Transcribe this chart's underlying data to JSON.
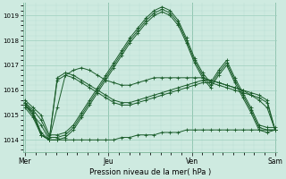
{
  "xlabel": "Pression niveau de la mer( hPa )",
  "bg_color": "#ceeae0",
  "grid_color_major": "#9ecfbe",
  "grid_color_minor": "#b8ddd2",
  "line_color": "#1a5c2a",
  "day_labels": [
    "Mer",
    "Jeu",
    "Ven",
    "Sam"
  ],
  "ylim": [
    1013.5,
    1019.5
  ],
  "yticks": [
    1014,
    1015,
    1016,
    1017,
    1018,
    1019
  ],
  "xlim_days": 6.0,
  "series": [
    [
      1015.5,
      1015.2,
      1014.8,
      1014.1,
      1014.1,
      1014.2,
      1014.5,
      1015.0,
      1015.5,
      1016.0,
      1016.5,
      1017.0,
      1017.5,
      1018.0,
      1018.4,
      1018.8,
      1019.1,
      1019.25,
      1019.1,
      1018.7,
      1018.0,
      1017.2,
      1016.6,
      1016.2,
      1016.7,
      1017.1,
      1016.4,
      1015.8,
      1015.2,
      1014.5,
      1014.4,
      1014.4
    ],
    [
      1015.4,
      1015.0,
      1014.6,
      1014.0,
      1014.0,
      1014.1,
      1014.4,
      1014.9,
      1015.4,
      1015.9,
      1016.4,
      1016.9,
      1017.4,
      1017.9,
      1018.3,
      1018.7,
      1019.0,
      1019.15,
      1019.0,
      1018.6,
      1017.9,
      1017.1,
      1016.5,
      1016.1,
      1016.6,
      1017.0,
      1016.3,
      1015.7,
      1015.1,
      1014.4,
      1014.3,
      1014.4
    ],
    [
      1015.6,
      1015.3,
      1015.0,
      1014.2,
      1014.2,
      1014.3,
      1014.6,
      1015.1,
      1015.6,
      1016.1,
      1016.6,
      1017.1,
      1017.6,
      1018.1,
      1018.5,
      1018.9,
      1019.2,
      1019.35,
      1019.2,
      1018.8,
      1018.1,
      1017.3,
      1016.7,
      1016.3,
      1016.8,
      1017.2,
      1016.5,
      1015.9,
      1015.3,
      1014.6,
      1014.5,
      1014.5
    ],
    [
      1015.4,
      1015.1,
      1014.3,
      1014.0,
      1016.5,
      1016.7,
      1016.6,
      1016.4,
      1016.2,
      1016.0,
      1015.8,
      1015.6,
      1015.5,
      1015.5,
      1015.6,
      1015.7,
      1015.8,
      1015.9,
      1016.0,
      1016.1,
      1016.2,
      1016.3,
      1016.4,
      1016.4,
      1016.3,
      1016.2,
      1016.1,
      1016.0,
      1015.9,
      1015.8,
      1015.6,
      1014.4
    ],
    [
      1015.5,
      1015.1,
      1014.2,
      1014.0,
      1014.0,
      1014.0,
      1014.0,
      1014.0,
      1014.0,
      1014.0,
      1014.0,
      1014.0,
      1014.1,
      1014.1,
      1014.2,
      1014.2,
      1014.2,
      1014.3,
      1014.3,
      1014.3,
      1014.4,
      1014.4,
      1014.4,
      1014.4,
      1014.4,
      1014.4,
      1014.4,
      1014.4,
      1014.4,
      1014.4,
      1014.4,
      1014.4
    ],
    [
      1015.3,
      1014.9,
      1014.2,
      1014.0,
      1016.4,
      1016.6,
      1016.5,
      1016.3,
      1016.1,
      1015.9,
      1015.7,
      1015.5,
      1015.4,
      1015.4,
      1015.5,
      1015.6,
      1015.7,
      1015.8,
      1015.9,
      1016.0,
      1016.1,
      1016.2,
      1016.3,
      1016.3,
      1016.2,
      1016.1,
      1016.0,
      1015.9,
      1015.8,
      1015.7,
      1015.5,
      1014.4
    ],
    [
      1015.4,
      1015.0,
      1014.2,
      1014.0,
      1015.3,
      1016.6,
      1016.8,
      1016.9,
      1016.8,
      1016.6,
      1016.4,
      1016.3,
      1016.2,
      1016.2,
      1016.3,
      1016.4,
      1016.5,
      1016.5,
      1016.5,
      1016.5,
      1016.5,
      1016.5,
      1016.5,
      1016.4,
      1016.3,
      1016.2,
      1016.1,
      1016.0,
      1015.8,
      1015.6,
      1015.3,
      1014.4
    ]
  ],
  "n_points": 32
}
